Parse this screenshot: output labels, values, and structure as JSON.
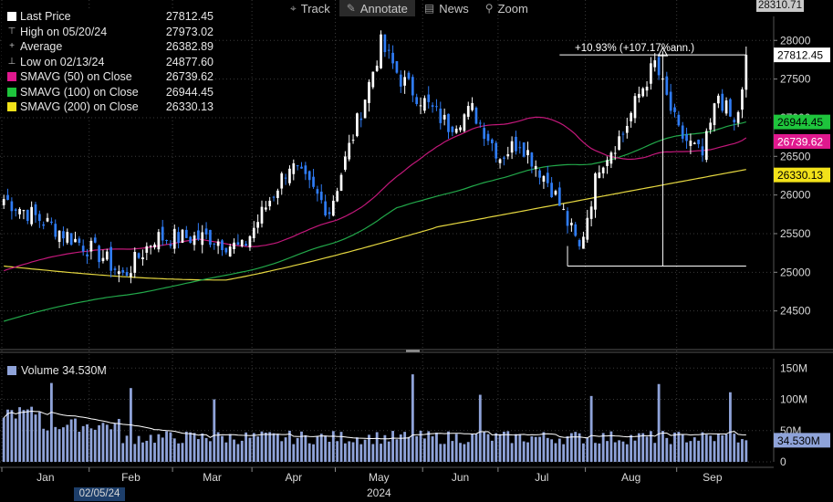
{
  "toolbar": {
    "items": [
      {
        "label": "Track",
        "icon": "crosshair-icon"
      },
      {
        "label": "Annotate",
        "icon": "pencil-icon"
      },
      {
        "label": "News",
        "icon": "news-icon"
      },
      {
        "label": "Zoom",
        "icon": "magnifier-icon"
      }
    ]
  },
  "legend": {
    "rows": [
      {
        "label": "Last Price",
        "value": "27812.45",
        "color": "#ffffff",
        "kind": "box"
      },
      {
        "label": "High on 05/20/24",
        "value": "27973.02",
        "kind": "text"
      },
      {
        "label": "Average",
        "value": "26382.89",
        "kind": "text"
      },
      {
        "label": "Low on 02/13/24",
        "value": "24877.60",
        "kind": "text"
      },
      {
        "label": "SMAVG (50)  on Close",
        "value": "26739.62",
        "color": "#e0188e",
        "kind": "box"
      },
      {
        "label": "SMAVG (100)  on Close",
        "value": "26944.45",
        "color": "#1ec43c",
        "kind": "box"
      },
      {
        "label": "SMAVG (200)  on Close",
        "value": "26330.13",
        "color": "#f2e21a",
        "kind": "box"
      }
    ]
  },
  "volume_legend": {
    "label": "Volume",
    "value": "34.530M"
  },
  "top_right_value": "28310.71",
  "highlight_date": "02/05/24",
  "colors": {
    "up": "#ffffff",
    "down": "#2f7cf6",
    "sma50": "#c2187a",
    "sma100": "#22a84a",
    "sma200": "#e5d740",
    "volume": "#8fa3d9",
    "grid": "#3a3a3a",
    "axis_text": "#d9d9d9"
  },
  "chart_data": {
    "type": "candlestick",
    "price_axis": {
      "ticks": [
        24500,
        25000,
        25500,
        26000,
        26500,
        27000,
        27500,
        28000
      ],
      "ylim": [
        24000,
        28310
      ]
    },
    "volume_axis": {
      "ticks": [
        "0",
        "50M",
        "100M",
        "150M"
      ],
      "ylim": [
        0,
        165
      ]
    },
    "x_months": [
      "Jan",
      "Feb",
      "Mar",
      "Apr",
      "May",
      "Jun",
      "Jul",
      "Aug",
      "Sep"
    ],
    "x_year": "2024",
    "anchors": {
      "days": [
        0,
        12,
        25,
        30,
        38,
        52,
        60,
        72,
        82,
        90,
        95,
        100,
        108,
        112,
        118,
        125,
        130,
        138,
        145,
        150,
        156,
        160,
        164,
        170,
        176,
        180,
        184,
        187
      ],
      "close": [
        25950,
        25600,
        25200,
        24950,
        25450,
        25450,
        25300,
        26400,
        25800,
        27100,
        27950,
        27500,
        27100,
        26900,
        27100,
        26500,
        26700,
        26100,
        25300,
        26400,
        26800,
        27300,
        27700,
        26800,
        26500,
        27300,
        26900,
        27500
      ]
    },
    "last_close": 27812.45,
    "last_labels": [
      {
        "value": "27812.45",
        "bg": "#ffffff",
        "fg": "#000000"
      },
      {
        "value": "26944.45",
        "bg": "#1ec43c",
        "fg": "#000000"
      },
      {
        "value": "26739.62",
        "bg": "#e0188e",
        "fg": "#ffffff"
      },
      {
        "value": "26330.13",
        "bg": "#f2e21a",
        "fg": "#000000"
      }
    ],
    "volume_last_label": "34.530M",
    "annotation": {
      "text": "+10.93% (+107.17%ann.)",
      "from_low": 25080,
      "to_high": 27812
    }
  }
}
